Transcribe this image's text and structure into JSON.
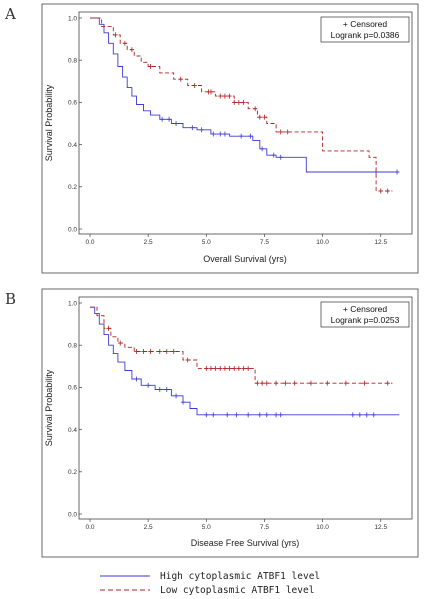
{
  "chart_data": [
    {
      "panel": "A",
      "type": "line",
      "step": true,
      "xlabel": "Overall Survival (yrs)",
      "ylabel": "Survival Probability",
      "xlim": [
        0,
        13.5
      ],
      "ylim": [
        0,
        1.0
      ],
      "xticks": [
        "0.0",
        "2.5",
        "5.0",
        "7.5",
        "10.0",
        "12.5"
      ],
      "yticks": [
        "0.0",
        "0.2",
        "0.4",
        "0.6",
        "0.8",
        "1.0"
      ],
      "legend_box": [
        "+ Censored",
        "Logrank p=0.0386"
      ],
      "legend_position": "top-right",
      "series": [
        {
          "name": "High cytoplasmic ATBF1 level",
          "color": "#3b3bd6",
          "dash": "solid",
          "x": [
            0,
            0.4,
            0.6,
            0.8,
            1.0,
            1.2,
            1.4,
            1.6,
            1.8,
            2.0,
            2.3,
            2.6,
            3.0,
            3.5,
            4.0,
            4.6,
            5.2,
            6.0,
            7.0,
            7.3,
            7.6,
            8.0,
            9.3,
            13.3
          ],
          "y": [
            1.0,
            0.97,
            0.93,
            0.88,
            0.83,
            0.77,
            0.72,
            0.67,
            0.63,
            0.59,
            0.56,
            0.54,
            0.52,
            0.5,
            0.48,
            0.47,
            0.45,
            0.44,
            0.42,
            0.38,
            0.35,
            0.34,
            0.27,
            0.27
          ],
          "censored_x": [
            3.1,
            3.4,
            3.7,
            4.4,
            4.8,
            5.3,
            5.6,
            5.8,
            6.5,
            6.9,
            7.4,
            7.9,
            8.2,
            12.3,
            13.2
          ]
        },
        {
          "name": "Low cytoplasmic ATBF1 level",
          "color": "#b02020",
          "dash": "dashed",
          "x": [
            0,
            0.5,
            1.0,
            1.3,
            1.6,
            1.9,
            2.2,
            2.5,
            3.0,
            3.6,
            4.2,
            4.8,
            5.4,
            6.2,
            6.8,
            7.2,
            7.6,
            8.0,
            10.0,
            12.0,
            12.3,
            13.0
          ],
          "y": [
            1.0,
            0.96,
            0.92,
            0.88,
            0.85,
            0.82,
            0.79,
            0.77,
            0.74,
            0.71,
            0.68,
            0.65,
            0.63,
            0.6,
            0.57,
            0.53,
            0.5,
            0.46,
            0.37,
            0.34,
            0.18,
            0.18
          ],
          "censored_x": [
            1.1,
            1.5,
            1.8,
            2.6,
            3.9,
            4.5,
            5.1,
            5.2,
            5.6,
            5.8,
            6.0,
            6.2,
            6.4,
            6.6,
            7.1,
            7.3,
            7.5,
            8.2,
            8.5,
            12.5,
            12.8
          ]
        }
      ]
    },
    {
      "panel": "B",
      "type": "line",
      "step": true,
      "xlabel": "Disease Free Survival (yrs)",
      "ylabel": "Survival Probability",
      "xlim": [
        0,
        13.5
      ],
      "ylim": [
        0,
        1.0
      ],
      "xticks": [
        "0.0",
        "2.5",
        "5.0",
        "7.5",
        "10.0",
        "12.5"
      ],
      "yticks": [
        "0.0",
        "0.2",
        "0.4",
        "0.6",
        "0.8",
        "1.0"
      ],
      "legend_box": [
        "+ Censored",
        "Logrank p=0.0253"
      ],
      "legend_position": "top-right",
      "series": [
        {
          "name": "High cytoplasmic ATBF1 level",
          "color": "#3b3bd6",
          "dash": "solid",
          "x": [
            0,
            0.2,
            0.4,
            0.6,
            0.8,
            1.0,
            1.2,
            1.5,
            1.8,
            2.2,
            2.8,
            3.5,
            4.0,
            4.3,
            4.6,
            13.3
          ],
          "y": [
            0.98,
            0.95,
            0.9,
            0.85,
            0.8,
            0.76,
            0.72,
            0.68,
            0.64,
            0.61,
            0.59,
            0.56,
            0.53,
            0.5,
            0.47,
            0.47
          ],
          "censored_x": [
            2.0,
            2.5,
            3.0,
            3.3,
            3.7,
            4.0,
            5.0,
            5.3,
            5.9,
            6.3,
            6.8,
            7.3,
            7.6,
            8.0,
            8.2,
            11.3,
            11.6,
            11.9,
            12.2
          ]
        },
        {
          "name": "Low cytoplasmic ATBF1 level",
          "color": "#b02020",
          "dash": "dashed",
          "x": [
            0,
            0.3,
            0.6,
            0.9,
            1.2,
            1.5,
            1.9,
            4.0,
            4.6,
            7.1,
            13.0
          ],
          "y": [
            0.98,
            0.94,
            0.88,
            0.84,
            0.81,
            0.79,
            0.77,
            0.73,
            0.69,
            0.62,
            0.62
          ],
          "censored_x": [
            0.8,
            1.3,
            2.0,
            2.3,
            2.6,
            3.0,
            3.3,
            3.6,
            4.2,
            5.0,
            5.2,
            5.4,
            5.6,
            5.8,
            6.0,
            6.2,
            6.4,
            6.6,
            6.8,
            7.2,
            7.4,
            7.6,
            8.0,
            8.4,
            8.8,
            9.5,
            10.2,
            11.0,
            11.8,
            12.8
          ]
        }
      ]
    }
  ],
  "bottom_legend": [
    {
      "label": "High cytoplasmic ATBF1 level",
      "color": "#3b3bd6",
      "dash": "solid"
    },
    {
      "label": "Low cytoplasmic ATBF1 level",
      "color": "#b02020",
      "dash": "dashed"
    }
  ]
}
